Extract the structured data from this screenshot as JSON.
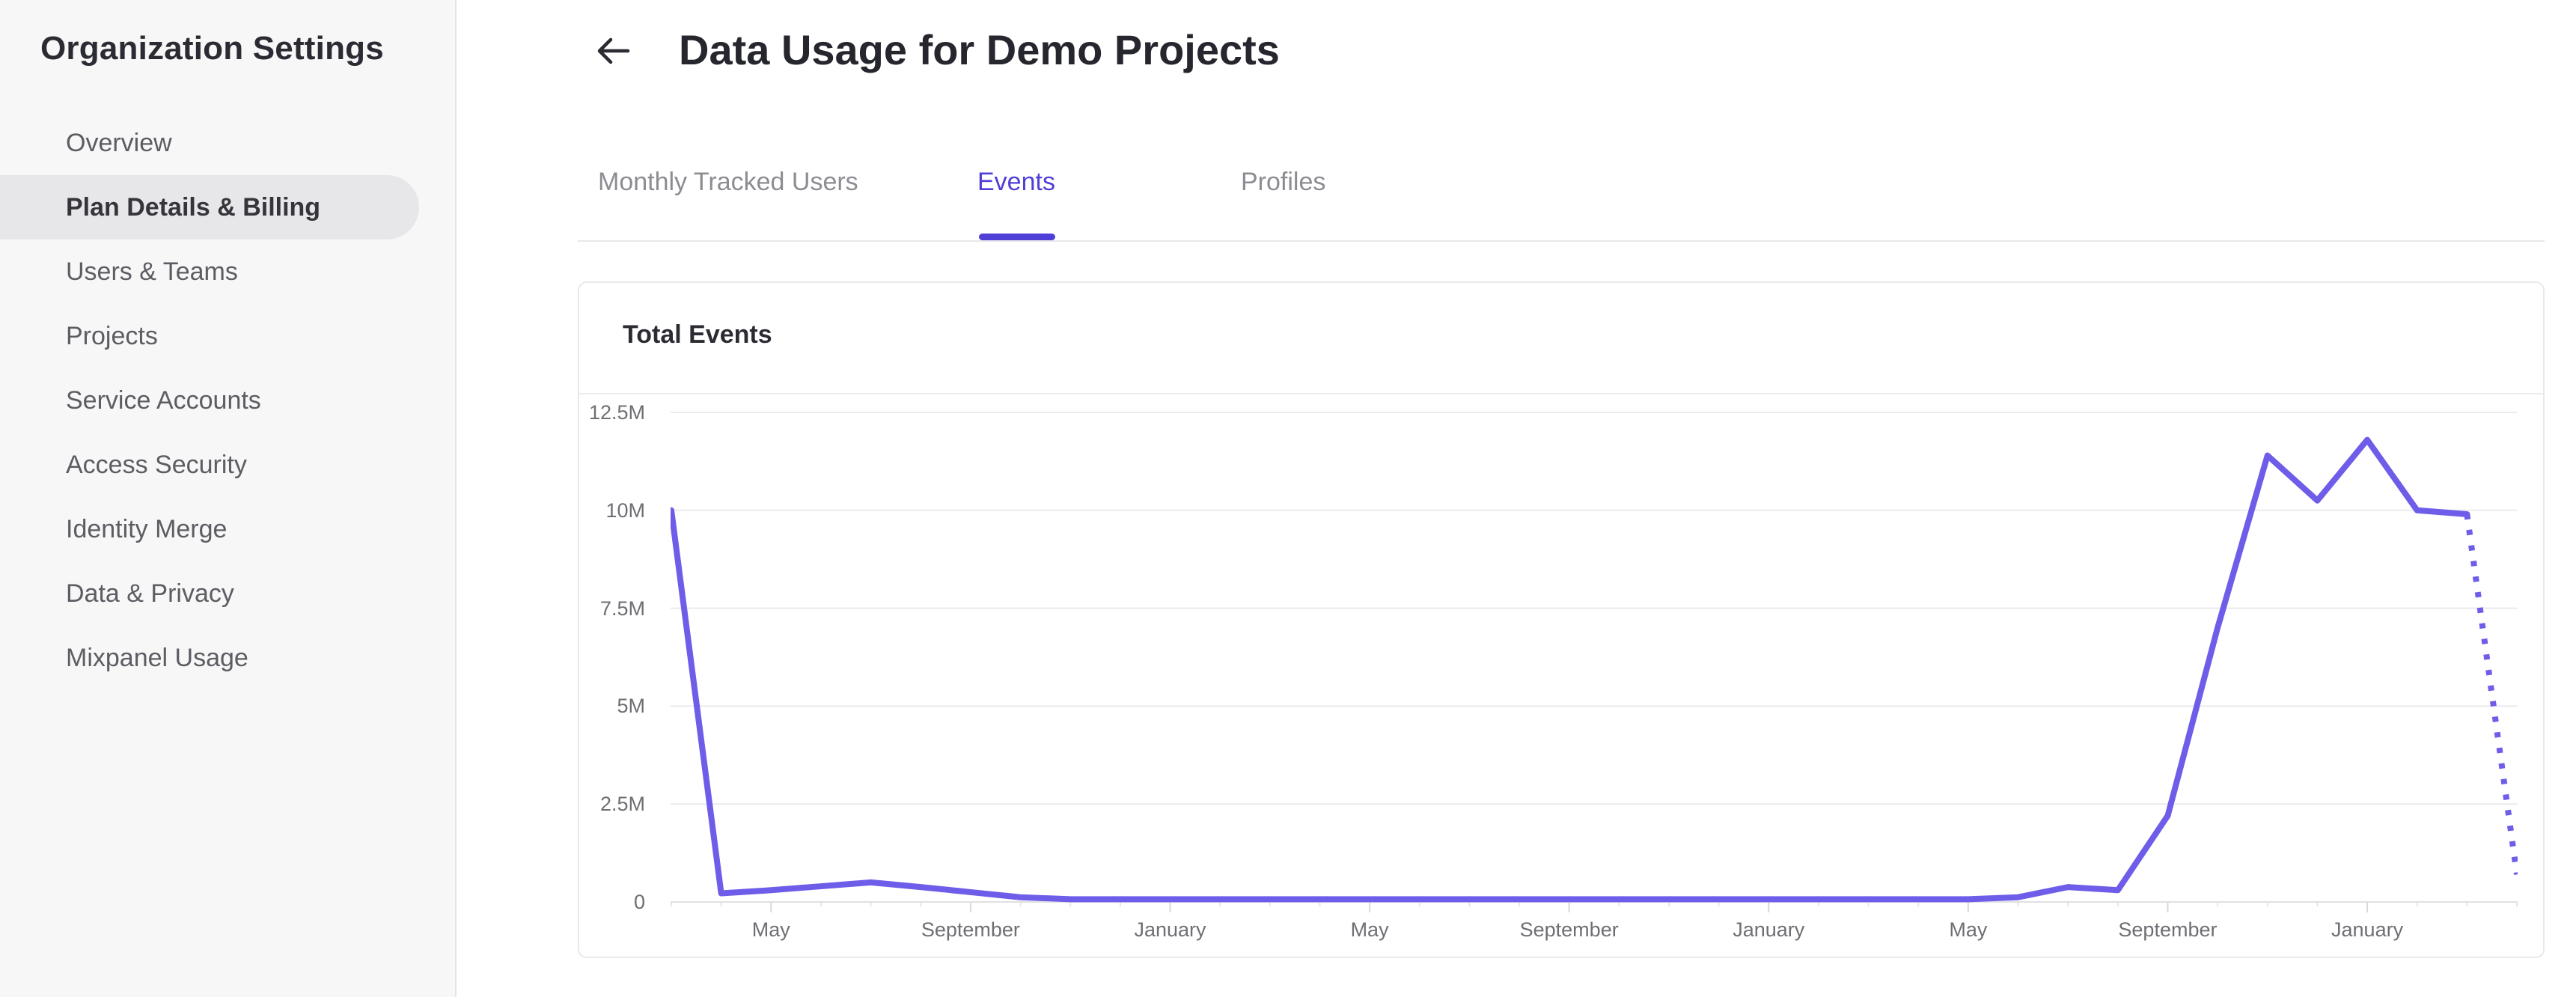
{
  "sidebar": {
    "title": "Organization Settings",
    "items": [
      {
        "label": "Overview",
        "active": false
      },
      {
        "label": "Plan Details & Billing",
        "active": true
      },
      {
        "label": "Users & Teams",
        "active": false
      },
      {
        "label": "Projects",
        "active": false
      },
      {
        "label": "Service Accounts",
        "active": false
      },
      {
        "label": "Access Security",
        "active": false
      },
      {
        "label": "Identity Merge",
        "active": false
      },
      {
        "label": "Data & Privacy",
        "active": false
      },
      {
        "label": "Mixpanel Usage",
        "active": false
      }
    ]
  },
  "header": {
    "title": "Data Usage for Demo Projects",
    "back_icon": "left-arrow"
  },
  "tabs": [
    {
      "label": "Monthly Tracked Users",
      "active": false
    },
    {
      "label": "Events",
      "active": true
    },
    {
      "label": "Profiles",
      "active": false
    }
  ],
  "colors": {
    "active_tab_text": "#4f3fd7",
    "tab_underline": "#4f3fd7",
    "chart_line": "#6e5de9",
    "sidebar_active_bg": "#e7e7e9",
    "gridline": "#ebebee",
    "axis_line": "#e0e0e3",
    "axis_tick": "#d8d8dc"
  },
  "chart_data": {
    "type": "line",
    "title": "Total Events",
    "legend": "none",
    "grid": "horizontal-only",
    "cadence": "monthly",
    "ylim_millions": [
      0,
      12.5
    ],
    "y_tick_labels": [
      "12.5M",
      "10M",
      "7.5M",
      "5M",
      "2.5M",
      "0"
    ],
    "y_tick_values_millions": [
      12.5,
      10,
      7.5,
      5,
      2.5,
      0
    ],
    "x_tick_labels": [
      "May",
      "September",
      "January",
      "May",
      "September",
      "January",
      "May",
      "September",
      "January"
    ],
    "x_tick_indices": [
      2,
      6,
      10,
      14,
      18,
      22,
      26,
      30,
      34
    ],
    "series": [
      {
        "name": "Total Events",
        "unit": "millions of events per month",
        "final_segment": "dotted (incomplete month)",
        "values_millions": [
          10,
          0.22,
          0.3,
          0.4,
          0.5,
          0.38,
          0.25,
          0.12,
          0.07,
          0.07,
          0.07,
          0.07,
          0.07,
          0.07,
          0.07,
          0.07,
          0.07,
          0.07,
          0.07,
          0.07,
          0.07,
          0.07,
          0.07,
          0.07,
          0.07,
          0.07,
          0.07,
          0.12,
          0.38,
          0.3,
          2.2,
          7,
          11.4,
          10.25,
          11.8,
          10,
          9.9,
          0.7
        ]
      }
    ]
  }
}
